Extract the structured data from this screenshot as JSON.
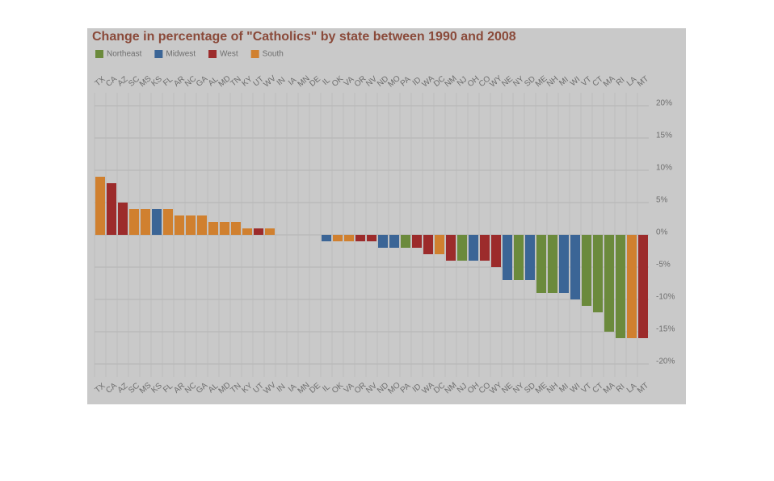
{
  "chart_data": {
    "type": "bar",
    "title": "Change in percentage of \"Catholics\" by state between 1990 and 2008",
    "categories": [
      "TX",
      "CA",
      "AZ",
      "SC",
      "MS",
      "KS",
      "FL",
      "AR",
      "NC",
      "GA",
      "AL",
      "MD",
      "TN",
      "KY",
      "UT",
      "WV",
      "IN",
      "IA",
      "MN",
      "DE",
      "IL",
      "OK",
      "VA",
      "OR",
      "NV",
      "ND",
      "MO",
      "PA",
      "ID",
      "WA",
      "DC",
      "NM",
      "NJ",
      "OH",
      "CO",
      "WY",
      "NE",
      "NY",
      "SD",
      "ME",
      "NH",
      "MI",
      "WI",
      "VT",
      "CT",
      "MA",
      "RI",
      "LA",
      "MT"
    ],
    "series": [
      {
        "name": "Northeast",
        "color": "#6b8a3c",
        "values": [
          null,
          null,
          null,
          null,
          null,
          null,
          null,
          null,
          null,
          null,
          null,
          null,
          null,
          null,
          null,
          null,
          null,
          null,
          null,
          null,
          null,
          null,
          null,
          null,
          null,
          null,
          null,
          -2,
          null,
          null,
          null,
          null,
          -4,
          null,
          null,
          null,
          null,
          -7,
          null,
          -9,
          -9,
          null,
          null,
          -11,
          -12,
          -15,
          -16,
          null,
          null
        ]
      },
      {
        "name": "Midwest",
        "color": "#3b6596",
        "values": [
          null,
          null,
          null,
          null,
          null,
          4,
          null,
          null,
          null,
          null,
          null,
          null,
          null,
          null,
          null,
          null,
          0,
          0,
          0,
          null,
          -1,
          null,
          null,
          null,
          null,
          -2,
          -2,
          null,
          null,
          null,
          null,
          null,
          null,
          -4,
          null,
          null,
          -7,
          null,
          -7,
          null,
          null,
          -9,
          -10,
          null,
          null,
          null,
          null,
          null,
          null
        ]
      },
      {
        "name": "West",
        "color": "#9c2b2b",
        "values": [
          null,
          8,
          5,
          null,
          null,
          null,
          null,
          null,
          null,
          null,
          null,
          null,
          null,
          null,
          1,
          null,
          null,
          null,
          null,
          null,
          null,
          null,
          null,
          -1,
          -1,
          null,
          null,
          null,
          -2,
          -3,
          null,
          -4,
          null,
          null,
          -4,
          -5,
          null,
          null,
          null,
          null,
          null,
          null,
          null,
          null,
          null,
          null,
          null,
          null,
          -16
        ]
      },
      {
        "name": "South",
        "color": "#d0802f",
        "values": [
          9,
          null,
          null,
          4,
          4,
          null,
          4,
          3,
          3,
          3,
          2,
          2,
          2,
          1,
          null,
          1,
          null,
          null,
          null,
          0,
          null,
          -1,
          -1,
          null,
          null,
          null,
          null,
          null,
          null,
          null,
          -3,
          null,
          null,
          null,
          null,
          null,
          null,
          null,
          null,
          null,
          null,
          null,
          null,
          null,
          null,
          null,
          null,
          -16,
          null
        ]
      }
    ],
    "ylim": [
      -22,
      22
    ],
    "yticks": [
      {
        "value": -20,
        "label": "-20%"
      },
      {
        "value": -15,
        "label": "-15%"
      },
      {
        "value": -10,
        "label": "-10%"
      },
      {
        "value": -5,
        "label": "-5%"
      },
      {
        "value": 0,
        "label": "0%"
      },
      {
        "value": 5,
        "label": "5%"
      },
      {
        "value": 10,
        "label": "10%"
      },
      {
        "value": 15,
        "label": "15%"
      },
      {
        "value": 20,
        "label": "20%"
      }
    ],
    "grid": true
  }
}
